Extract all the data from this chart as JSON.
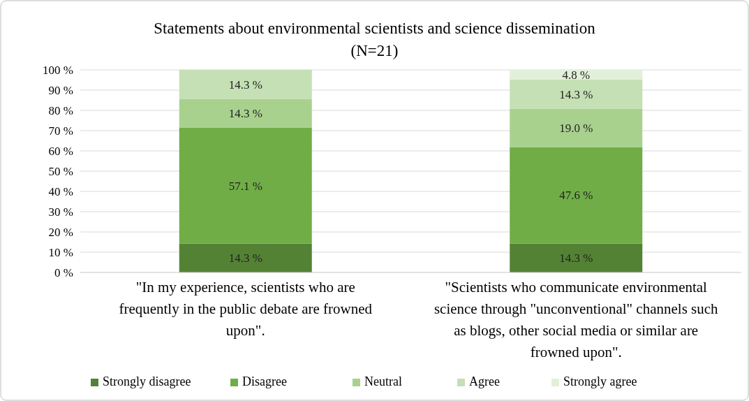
{
  "chart_data": {
    "type": "bar",
    "stacked": true,
    "title": "Statements about environmental scientists and science dissemination",
    "subtitle": "(N=21)",
    "categories": [
      "\"In my experience, scientists who are frequently in the public debate are frowned upon\".",
      "\"Scientists who communicate environmental science through \"unconventional\" channels such as blogs, other social media or similar are frowned upon\"."
    ],
    "series": [
      {
        "name": "Strongly disagree",
        "color": "#548235",
        "values": [
          14.3,
          14.3
        ],
        "value_labels": [
          "14.3 %",
          "14.3 %"
        ]
      },
      {
        "name": "Disagree",
        "color": "#70ad47",
        "values": [
          57.1,
          47.6
        ],
        "value_labels": [
          "57.1 %",
          "47.6 %"
        ]
      },
      {
        "name": "Neutral",
        "color": "#a9d18e",
        "values": [
          14.3,
          19.0
        ],
        "value_labels": [
          "14.3 %",
          "19.0 %"
        ]
      },
      {
        "name": "Agree",
        "color": "#c5e0b4",
        "values": [
          14.3,
          14.3
        ],
        "value_labels": [
          "14.3 %",
          "14.3 %"
        ]
      },
      {
        "name": "Strongly agree",
        "color": "#e2f0d9",
        "values": [
          0,
          4.8
        ],
        "value_labels": [
          null,
          "4.8 %"
        ]
      }
    ],
    "ylim": [
      0,
      100
    ],
    "yticks": [
      {
        "value": 0,
        "label": "0 %"
      },
      {
        "value": 10,
        "label": "10 %"
      },
      {
        "value": 20,
        "label": "20 %"
      },
      {
        "value": 30,
        "label": "30 %"
      },
      {
        "value": 40,
        "label": "40 %"
      },
      {
        "value": 50,
        "label": "50 %"
      },
      {
        "value": 60,
        "label": "60 %"
      },
      {
        "value": 70,
        "label": "70 %"
      },
      {
        "value": 80,
        "label": "80 %"
      },
      {
        "value": 90,
        "label": "90 %"
      },
      {
        "value": 100,
        "label": "100 %"
      }
    ],
    "grid": "y",
    "legend": "bottom"
  }
}
